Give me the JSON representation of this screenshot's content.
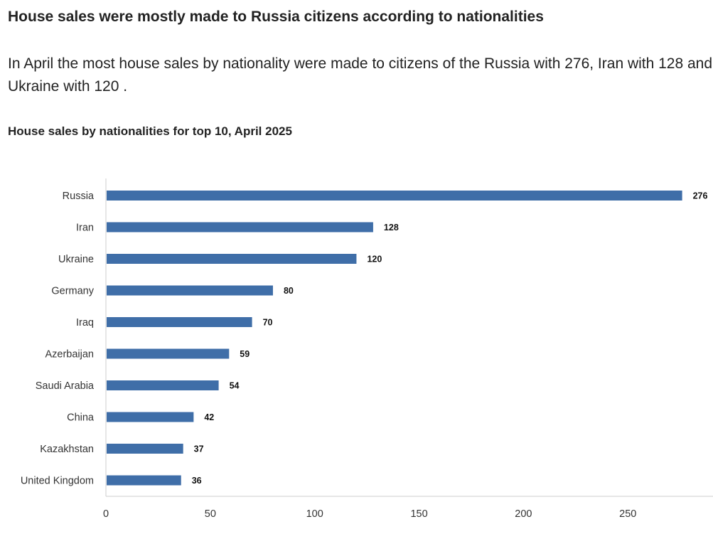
{
  "article": {
    "headline": "House sales were mostly made to Russia citizens according to nationalities",
    "summary": "In April the most house sales by nationality were made to citizens of the Russia with 276, Iran with 128 and Ukraine with 120 ."
  },
  "chart_data": {
    "type": "bar",
    "orientation": "horizontal",
    "title": "House sales by nationalities for top 10, April 2025",
    "xlabel": "",
    "ylabel": "",
    "categories": [
      "Russia",
      "Iran",
      "Ukraine",
      "Germany",
      "Iraq",
      "Azerbaijan",
      "Saudi Arabia",
      "China",
      "Kazakhstan",
      "United Kingdom"
    ],
    "values": [
      276,
      128,
      120,
      80,
      70,
      59,
      54,
      42,
      37,
      36
    ],
    "xlim": [
      0,
      290
    ],
    "xticks": [
      0,
      50,
      100,
      150,
      200,
      250
    ],
    "grid": false,
    "legend": "none",
    "data_labels": true,
    "bar_color": "#3f6ea8",
    "axis_color": "#cccccc"
  }
}
